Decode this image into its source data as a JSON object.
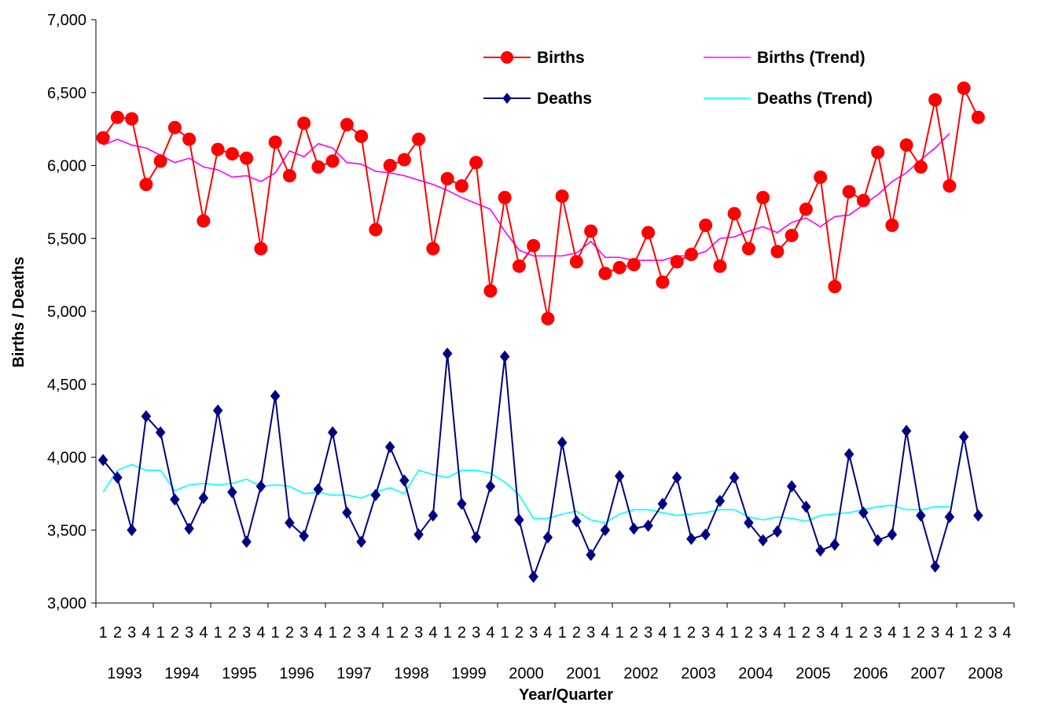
{
  "chart_data": {
    "type": "line",
    "xlabel": "Year/Quarter",
    "ylabel": "Births / Deaths",
    "ylim": [
      3000,
      7000
    ],
    "yticks": [
      3000,
      3500,
      4000,
      4500,
      5000,
      5500,
      6000,
      6500,
      7000
    ],
    "ytick_labels": [
      "3,000",
      "3,500",
      "4,000",
      "4,500",
      "5,000",
      "5,500",
      "6,000",
      "6,500",
      "7,000"
    ],
    "quarter_labels": [
      "1",
      "2",
      "3",
      "4",
      "1",
      "2",
      "3",
      "4",
      "1",
      "2",
      "3",
      "4",
      "1",
      "2",
      "3",
      "4",
      "1",
      "2",
      "3",
      "4",
      "1",
      "2",
      "3",
      "4",
      "1",
      "2",
      "3",
      "4",
      "1",
      "2",
      "3",
      "4",
      "1",
      "2",
      "3",
      "4",
      "1",
      "2",
      "3",
      "4",
      "1",
      "2",
      "3",
      "4",
      "1",
      "2",
      "3",
      "4",
      "1",
      "2",
      "3",
      "4",
      "1",
      "2",
      "3",
      "4",
      "1",
      "2",
      "3",
      "4",
      "1",
      "2",
      "3",
      "4"
    ],
    "years": [
      "1993",
      "1994",
      "1995",
      "1996",
      "1997",
      "1998",
      "1999",
      "2000",
      "2001",
      "2002",
      "2003",
      "2004",
      "2005",
      "2006",
      "2007",
      "2008"
    ],
    "grid": false,
    "legend_position": "top-right",
    "series": [
      {
        "name": "Births",
        "style": "line-circle",
        "color": "#FF0000",
        "values": [
          6190,
          6330,
          6320,
          5870,
          6030,
          6260,
          6180,
          5620,
          6110,
          6080,
          6050,
          5430,
          6160,
          5930,
          6290,
          5990,
          6030,
          6280,
          6200,
          5560,
          6000,
          6040,
          6180,
          5430,
          5910,
          5860,
          6020,
          5140,
          5780,
          5310,
          5450,
          4950,
          5790,
          5340,
          5550,
          5260,
          5300,
          5320,
          5540,
          5200,
          5340,
          5390,
          5590,
          5310,
          5670,
          5430,
          5780,
          5410,
          5520,
          5700,
          5920,
          5170,
          5820,
          5760,
          6090,
          5590,
          6140,
          5990,
          6450,
          5860,
          6530,
          6330
        ]
      },
      {
        "name": "Births (Trend)",
        "style": "line",
        "color": "#FF00FF",
        "values": [
          6140,
          6180,
          6140,
          6120,
          6070,
          6020,
          6050,
          5990,
          5970,
          5920,
          5930,
          5890,
          5950,
          6100,
          6060,
          6150,
          6120,
          6020,
          6010,
          5960,
          5950,
          5930,
          5900,
          5870,
          5830,
          5780,
          5740,
          5700,
          5550,
          5420,
          5380,
          5380,
          5380,
          5400,
          5480,
          5370,
          5370,
          5350,
          5350,
          5350,
          5380,
          5380,
          5410,
          5500,
          5510,
          5550,
          5580,
          5540,
          5610,
          5640,
          5580,
          5650,
          5660,
          5730,
          5800,
          5890,
          5950,
          6040,
          6120,
          6220,
          null,
          null
        ]
      },
      {
        "name": "Deaths",
        "style": "line-diamond",
        "color": "#000080",
        "values": [
          3980,
          3860,
          3500,
          4280,
          4170,
          3710,
          3510,
          3720,
          4320,
          3760,
          3420,
          3800,
          4420,
          3550,
          3460,
          3780,
          4170,
          3620,
          3420,
          3740,
          4070,
          3840,
          3470,
          3600,
          4710,
          3680,
          3450,
          3800,
          4690,
          3570,
          3180,
          3450,
          4100,
          3560,
          3330,
          3500,
          3870,
          3510,
          3530,
          3680,
          3860,
          3440,
          3470,
          3700,
          3860,
          3550,
          3430,
          3490,
          3800,
          3660,
          3360,
          3400,
          4020,
          3620,
          3430,
          3470,
          4180,
          3600,
          3250,
          3590,
          4140,
          3600
        ]
      },
      {
        "name": "Deaths (Trend)",
        "style": "line",
        "color": "#00FFFF",
        "values": [
          3760,
          3910,
          3950,
          3910,
          3910,
          3770,
          3810,
          3820,
          3810,
          3820,
          3850,
          3800,
          3810,
          3800,
          3750,
          3760,
          3740,
          3740,
          3720,
          3760,
          3790,
          3750,
          3910,
          3880,
          3860,
          3910,
          3910,
          3890,
          3830,
          3740,
          3580,
          3580,
          3610,
          3630,
          3570,
          3550,
          3610,
          3640,
          3640,
          3620,
          3600,
          3610,
          3620,
          3640,
          3640,
          3590,
          3570,
          3590,
          3580,
          3560,
          3600,
          3610,
          3620,
          3640,
          3660,
          3670,
          3640,
          3640,
          3660,
          3660,
          null,
          null
        ]
      }
    ]
  }
}
